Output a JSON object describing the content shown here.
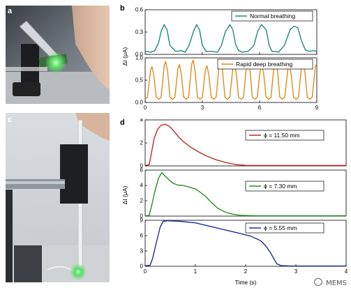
{
  "panels": {
    "a": {
      "letter": "a"
    },
    "b": {
      "letter": "b"
    },
    "c": {
      "letter": "c"
    },
    "d": {
      "letter": "d"
    }
  },
  "watermark": {
    "text": "MEMS",
    "icon": "wechat-icon"
  },
  "colors": {
    "normal": "#1f8a75",
    "rapid": "#e08a1a",
    "d1": "#c0262a",
    "d2": "#2f8a2c",
    "d3": "#1f2f8f"
  },
  "chart_data": [
    {
      "type": "line",
      "panel": "b-top",
      "title": "",
      "xlabel": "",
      "ylabel": "ΔI (μA)",
      "xlim": [
        0,
        9
      ],
      "ylim": [
        0,
        0.6
      ],
      "xticks": [
        0,
        3,
        6,
        9
      ],
      "yticks": [
        0.0,
        0.3,
        0.6
      ],
      "ytick_labels": [
        "0.0",
        "0.3",
        "0.6"
      ],
      "legend": "top-right",
      "series": [
        {
          "name": "Normal breathing",
          "color": "#1f8a75",
          "x": [
            0,
            0.3,
            0.5,
            0.7,
            0.85,
            1.0,
            1.15,
            1.3,
            1.6,
            1.9,
            2.1,
            2.3,
            2.55,
            2.7,
            2.85,
            3.0,
            3.2,
            3.5,
            3.8,
            4.0,
            4.2,
            4.45,
            4.6,
            4.75,
            4.9,
            5.1,
            5.4,
            5.7,
            5.9,
            6.1,
            6.35,
            6.5,
            6.65,
            6.8,
            7.0,
            7.3,
            7.6,
            7.8,
            8.0,
            8.2,
            8.4,
            8.6,
            8.8,
            9.0
          ],
          "y": [
            0.04,
            0.03,
            0.05,
            0.15,
            0.32,
            0.4,
            0.33,
            0.12,
            0.04,
            0.05,
            0.03,
            0.12,
            0.32,
            0.4,
            0.33,
            0.12,
            0.04,
            0.04,
            0.03,
            0.12,
            0.3,
            0.4,
            0.33,
            0.13,
            0.05,
            0.03,
            0.04,
            0.12,
            0.31,
            0.4,
            0.33,
            0.12,
            0.04,
            0.04,
            0.03,
            0.12,
            0.33,
            0.38,
            0.36,
            0.18,
            0.06,
            0.04,
            0.05,
            0.04
          ]
        }
      ]
    },
    {
      "type": "line",
      "panel": "b-bottom",
      "title": "",
      "xlabel": "",
      "ylabel": "ΔI (μA)",
      "xlim": [
        0,
        9
      ],
      "ylim": [
        0,
        1.0
      ],
      "xticks": [
        0,
        3,
        6,
        9
      ],
      "xtick_labels": [
        "0",
        "3",
        "6",
        "9"
      ],
      "yticks": [
        0.0,
        0.5,
        1.0
      ],
      "ytick_labels": [
        "0.0",
        "0.5",
        "1.0"
      ],
      "legend": "top-right",
      "series": [
        {
          "name": "Rapid deep breathing",
          "color": "#e08a1a",
          "period": 0.72,
          "peaks": [
            0.8,
            0.92,
            0.85,
            0.95,
            0.82,
            0.93,
            0.86,
            0.94,
            0.84,
            0.95,
            0.83,
            0.9,
            0.88
          ],
          "baseline": 0.07
        }
      ]
    },
    {
      "type": "line",
      "panel": "d-top",
      "title": "",
      "xlabel": "",
      "ylabel": "",
      "xlim": [
        0,
        4
      ],
      "ylim": [
        0,
        4
      ],
      "yticks": [
        0,
        2,
        4
      ],
      "ytick_labels": [
        "0",
        "2",
        "4"
      ],
      "legend": "top-right",
      "series": [
        {
          "name": "ϕ = 11.50 mm",
          "color": "#c0262a",
          "x": [
            0,
            0.08,
            0.12,
            0.18,
            0.25,
            0.32,
            0.4,
            0.48,
            0.56,
            0.65,
            0.75,
            0.9,
            1.05,
            1.2,
            1.4,
            1.6,
            1.8,
            2.0,
            2.5,
            3.0,
            4.0
          ],
          "y": [
            0.05,
            0.1,
            1.0,
            2.4,
            3.2,
            3.55,
            3.62,
            3.45,
            3.1,
            2.6,
            2.15,
            1.65,
            1.25,
            0.9,
            0.55,
            0.3,
            0.12,
            0.05,
            0.04,
            0.04,
            0.04
          ]
        }
      ]
    },
    {
      "type": "line",
      "panel": "d-middle",
      "title": "",
      "xlabel": "",
      "ylabel": "ΔI (μA)",
      "xlim": [
        0,
        4
      ],
      "ylim": [
        0,
        6
      ],
      "yticks": [
        0,
        2,
        4,
        6
      ],
      "ytick_labels": [
        "0",
        "2",
        "4",
        "6"
      ],
      "legend": "top-right",
      "series": [
        {
          "name": "ϕ = 7.30 mm",
          "color": "#2f8a2c",
          "x": [
            0,
            0.08,
            0.13,
            0.2,
            0.27,
            0.33,
            0.4,
            0.48,
            0.55,
            0.65,
            0.75,
            0.85,
            1.0,
            1.1,
            1.2,
            1.3,
            1.45,
            1.6,
            1.75,
            1.9,
            2.2,
            2.6,
            3.0,
            4.0
          ],
          "y": [
            0.05,
            0.1,
            1.4,
            3.4,
            5.0,
            5.65,
            5.2,
            4.7,
            4.3,
            4.05,
            4.0,
            3.85,
            3.55,
            3.1,
            2.6,
            1.9,
            1.0,
            0.5,
            0.25,
            0.1,
            0.05,
            0.05,
            0.05,
            0.05
          ]
        }
      ]
    },
    {
      "type": "line",
      "panel": "d-bottom",
      "title": "",
      "xlabel": "Time (s)",
      "ylabel": "",
      "xlim": [
        0,
        4
      ],
      "ylim": [
        0,
        9
      ],
      "xticks": [
        0,
        1,
        2,
        3,
        4
      ],
      "xtick_labels": [
        "0",
        "1",
        "2",
        "3",
        "4"
      ],
      "yticks": [
        0,
        3,
        6,
        9
      ],
      "ytick_labels": [
        "0",
        "3",
        "6",
        "9"
      ],
      "legend": "top-right",
      "series": [
        {
          "name": "ϕ = 5.55 mm",
          "color": "#1f2f8f",
          "x": [
            0,
            0.1,
            0.15,
            0.22,
            0.3,
            0.36,
            0.45,
            0.7,
            1.0,
            1.3,
            1.6,
            1.9,
            2.1,
            2.3,
            2.4,
            2.5,
            2.56,
            2.62,
            2.7,
            2.9,
            3.2,
            4.0
          ],
          "y": [
            0.1,
            0.2,
            1.6,
            4.5,
            7.7,
            8.8,
            8.9,
            8.8,
            8.5,
            7.8,
            7.1,
            6.4,
            5.9,
            5.0,
            4.0,
            2.6,
            1.5,
            0.5,
            0.15,
            0.05,
            0.05,
            0.05
          ]
        }
      ]
    }
  ]
}
